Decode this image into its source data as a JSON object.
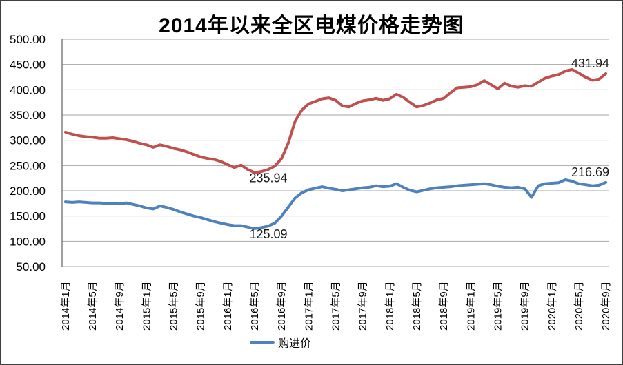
{
  "window": {
    "background": "#ffffff",
    "border_color": "#3f3f3f"
  },
  "title": "2014年以来全区电煤价格走势图",
  "legend": {
    "items": [
      {
        "label": "购进价",
        "color": "#4F81BD"
      }
    ]
  },
  "colors": {
    "red_series": "#C0504D",
    "blue_series": "#4F81BD",
    "gridline": "#a6a6a6",
    "axis": "#808080",
    "text": "#000000",
    "annotation_text": "#1a1a1a"
  },
  "chart_data": {
    "type": "line",
    "title": "2014年以来全区电煤价格走势图",
    "xlabel": "",
    "ylabel": "",
    "ylim": [
      50,
      500
    ],
    "grid": true,
    "legend_position": "bottom-center",
    "y_tick_labels": [
      "500.00",
      "450.00",
      "400.00",
      "350.00",
      "300.00",
      "250.00",
      "200.00",
      "150.00",
      "100.00",
      "50.00"
    ],
    "y_tick_values": [
      500,
      450,
      400,
      350,
      300,
      250,
      200,
      150,
      100,
      50
    ],
    "x_tick_step": 4,
    "x_tick_labels": [
      "2014年1月",
      "2014年5月",
      "2014年9月",
      "2015年1月",
      "2015年5月",
      "2015年9月",
      "2016年1月",
      "2016年5月",
      "2016年9月",
      "2017年1月",
      "2017年5月",
      "2017年9月",
      "2018年1月",
      "2018年5月",
      "2018年9月",
      "2019年1月",
      "2019年5月",
      "2019年9月",
      "2020年1月",
      "2020年5月",
      "2020年9月"
    ],
    "n_points": 81,
    "series": [
      {
        "name": "购进价",
        "color": "#4F81BD",
        "values": [
          178,
          177,
          178,
          177,
          176,
          176,
          175,
          175,
          174,
          176,
          173,
          170,
          166,
          164,
          170,
          167,
          163,
          158,
          154,
          150,
          147,
          143,
          139,
          136,
          133,
          131,
          131,
          128,
          125.09,
          127,
          130,
          136,
          150,
          168,
          186,
          196,
          202,
          205,
          208,
          205,
          203,
          200,
          202,
          204,
          206,
          207,
          210,
          208,
          209,
          214,
          207,
          201,
          198,
          201,
          204,
          206,
          207,
          208,
          210,
          211,
          212,
          213,
          214,
          212,
          209,
          207,
          206,
          207,
          204,
          187,
          210,
          214,
          215,
          216,
          222,
          219,
          214,
          212,
          210,
          211,
          216.69
        ]
      },
      {
        "name": "",
        "color": "#C0504D",
        "values": [
          316,
          312,
          309,
          307,
          306,
          304,
          304,
          305,
          303,
          301,
          298,
          294,
          291,
          286,
          291,
          288,
          284,
          281,
          277,
          272,
          267,
          264,
          262,
          258,
          252,
          246,
          251,
          242,
          235.94,
          238,
          242,
          249,
          264,
          295,
          338,
          360,
          372,
          377,
          382,
          384,
          379,
          368,
          366,
          373,
          378,
          380,
          383,
          379,
          382,
          391,
          385,
          375,
          366,
          369,
          374,
          380,
          383,
          394,
          404,
          405,
          406,
          410,
          418,
          410,
          402,
          413,
          407,
          405,
          408,
          407,
          415,
          423,
          427,
          430,
          437,
          440,
          433,
          425,
          419,
          421,
          431.94
        ]
      }
    ],
    "annotations": [
      {
        "text": "235.94",
        "series": 1,
        "anchor": "min"
      },
      {
        "text": "431.94",
        "series": 1,
        "anchor": "last"
      },
      {
        "text": "125.09",
        "series": 0,
        "anchor": "min"
      },
      {
        "text": "216.69",
        "series": 0,
        "anchor": "last"
      }
    ]
  }
}
